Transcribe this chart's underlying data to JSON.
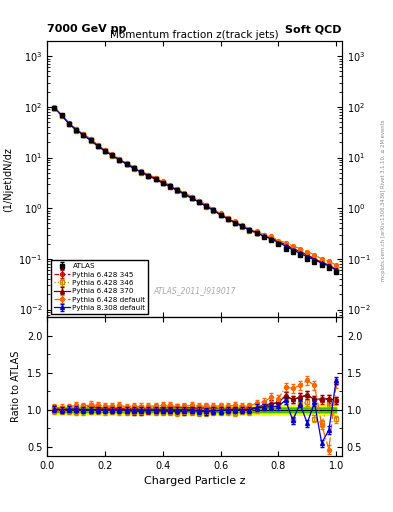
{
  "title_top_left": "7000 GeV pp",
  "title_top_right": "Soft QCD",
  "plot_title": "Momentum fraction z(track jets)",
  "xlabel": "Charged Particle z",
  "ylabel_main": "(1/Njet)dN/dz",
  "ylabel_ratio": "Ratio to ATLAS",
  "watermark": "ATLAS_2011_I919017",
  "right_label_top": "Rivet 3.1.10, ≥ 2M events",
  "right_label_bot": "mcplots.cern.ch [arXiv:1306.3436]",
  "z_values": [
    0.025,
    0.05,
    0.075,
    0.1,
    0.125,
    0.15,
    0.175,
    0.2,
    0.225,
    0.25,
    0.275,
    0.3,
    0.325,
    0.35,
    0.375,
    0.4,
    0.425,
    0.45,
    0.475,
    0.5,
    0.525,
    0.55,
    0.575,
    0.6,
    0.625,
    0.65,
    0.675,
    0.7,
    0.725,
    0.75,
    0.775,
    0.8,
    0.825,
    0.85,
    0.875,
    0.9,
    0.925,
    0.95,
    0.975,
    1.0
  ],
  "atlas_y": [
    95,
    68,
    47,
    35,
    28,
    22,
    17,
    13.5,
    11,
    9.0,
    7.5,
    6.2,
    5.2,
    4.4,
    3.8,
    3.2,
    2.7,
    2.3,
    1.9,
    1.6,
    1.35,
    1.12,
    0.92,
    0.75,
    0.62,
    0.52,
    0.44,
    0.37,
    0.32,
    0.27,
    0.24,
    0.2,
    0.16,
    0.14,
    0.12,
    0.1,
    0.088,
    0.075,
    0.065,
    0.055
  ],
  "atlas_yerr": [
    3,
    2,
    1.5,
    1.1,
    0.9,
    0.7,
    0.55,
    0.44,
    0.35,
    0.29,
    0.24,
    0.2,
    0.17,
    0.14,
    0.12,
    0.1,
    0.086,
    0.073,
    0.062,
    0.052,
    0.044,
    0.036,
    0.03,
    0.024,
    0.02,
    0.017,
    0.014,
    0.012,
    0.01,
    0.0087,
    0.0078,
    0.0065,
    0.0052,
    0.0045,
    0.0039,
    0.0033,
    0.0029,
    0.0024,
    0.0022,
    0.0018
  ],
  "p6_345_y": [
    97,
    69,
    48,
    36,
    29,
    23,
    17.5,
    13.8,
    11.2,
    9.2,
    7.6,
    6.3,
    5.3,
    4.5,
    3.9,
    3.3,
    2.8,
    2.35,
    1.95,
    1.65,
    1.38,
    1.15,
    0.94,
    0.77,
    0.63,
    0.53,
    0.45,
    0.38,
    0.33,
    0.29,
    0.26,
    0.22,
    0.19,
    0.16,
    0.14,
    0.12,
    0.1,
    0.085,
    0.075,
    0.062
  ],
  "p6_346_y": [
    94,
    67,
    46,
    34,
    27.5,
    21.5,
    16.8,
    13.2,
    10.8,
    8.8,
    7.3,
    6.0,
    5.05,
    4.3,
    3.7,
    3.1,
    2.62,
    2.21,
    1.84,
    1.56,
    1.3,
    1.08,
    0.89,
    0.73,
    0.6,
    0.5,
    0.43,
    0.36,
    0.32,
    0.28,
    0.25,
    0.21,
    0.18,
    0.15,
    0.13,
    0.11,
    0.096,
    0.082,
    0.072,
    0.06
  ],
  "p6_370_y": [
    96,
    68,
    47,
    35,
    28,
    22,
    17,
    13.5,
    11,
    9.0,
    7.4,
    6.1,
    5.1,
    4.35,
    3.75,
    3.15,
    2.65,
    2.25,
    1.87,
    1.58,
    1.32,
    1.1,
    0.91,
    0.74,
    0.62,
    0.52,
    0.44,
    0.37,
    0.33,
    0.28,
    0.26,
    0.22,
    0.19,
    0.16,
    0.14,
    0.12,
    0.1,
    0.086,
    0.075,
    0.062
  ],
  "p6_def_y": [
    98,
    70,
    49,
    37,
    29.5,
    23.5,
    18,
    14.2,
    11.5,
    9.5,
    7.8,
    6.5,
    5.4,
    4.6,
    4.0,
    3.4,
    2.85,
    2.4,
    2.0,
    1.7,
    1.42,
    1.18,
    0.97,
    0.79,
    0.65,
    0.55,
    0.46,
    0.39,
    0.35,
    0.3,
    0.28,
    0.23,
    0.21,
    0.18,
    0.16,
    0.14,
    0.12,
    0.1,
    0.09,
    0.075
  ],
  "p8_308_y": [
    96,
    68,
    47.5,
    35.5,
    28,
    22,
    17,
    13.5,
    11,
    9.0,
    7.5,
    6.2,
    5.2,
    4.4,
    3.8,
    3.2,
    2.7,
    2.3,
    1.9,
    1.6,
    1.33,
    1.1,
    0.91,
    0.74,
    0.62,
    0.52,
    0.44,
    0.37,
    0.33,
    0.28,
    0.25,
    0.21,
    0.18,
    0.15,
    0.13,
    0.11,
    0.097,
    0.082,
    0.073,
    0.06
  ],
  "p6_345_ratio": [
    1.02,
    1.01,
    1.02,
    1.03,
    1.04,
    1.05,
    1.03,
    1.02,
    1.02,
    1.02,
    1.01,
    1.02,
    1.02,
    1.02,
    1.03,
    1.03,
    1.04,
    1.04,
    1.03,
    1.03,
    1.02,
    1.03,
    1.02,
    1.03,
    1.02,
    1.02,
    1.02,
    1.03,
    1.03,
    1.07,
    1.08,
    1.1,
    1.19,
    1.14,
    1.17,
    1.2,
    1.14,
    1.13,
    1.15,
    1.13
  ],
  "p6_346_ratio": [
    0.99,
    0.99,
    0.98,
    0.97,
    0.98,
    0.98,
    0.99,
    0.98,
    0.98,
    0.98,
    0.97,
    0.97,
    0.97,
    0.98,
    0.97,
    0.97,
    0.97,
    0.96,
    0.97,
    0.975,
    0.96,
    0.96,
    0.97,
    0.97,
    0.97,
    0.96,
    0.98,
    0.97,
    1.0,
    1.04,
    1.04,
    1.05,
    1.13,
    0.86,
    1.08,
    1.1,
    0.88,
    0.82,
    1.09,
    0.87
  ],
  "p6_370_ratio": [
    1.01,
    1.0,
    1.0,
    1.0,
    1.0,
    1.0,
    1.0,
    1.0,
    1.0,
    1.0,
    0.99,
    0.98,
    0.98,
    0.99,
    0.99,
    0.98,
    0.98,
    0.98,
    0.98,
    0.99,
    0.98,
    0.98,
    0.99,
    0.99,
    1.0,
    1.0,
    1.0,
    1.0,
    1.03,
    1.04,
    1.08,
    1.1,
    1.19,
    1.14,
    1.17,
    1.2,
    1.14,
    1.15,
    1.15,
    1.13
  ],
  "p6_def_ratio": [
    1.03,
    1.03,
    1.04,
    1.06,
    1.05,
    1.07,
    1.06,
    1.05,
    1.05,
    1.06,
    1.04,
    1.05,
    1.04,
    1.05,
    1.05,
    1.06,
    1.06,
    1.04,
    1.05,
    1.06,
    1.05,
    1.05,
    1.05,
    1.05,
    1.05,
    1.06,
    1.05,
    1.05,
    1.09,
    1.11,
    1.17,
    1.15,
    1.31,
    1.29,
    1.33,
    1.4,
    1.33,
    0.8,
    0.46,
    1.36
  ],
  "p8_308_ratio": [
    1.01,
    1.0,
    1.01,
    1.01,
    1.0,
    1.0,
    1.0,
    1.0,
    1.0,
    1.0,
    1.0,
    1.0,
    1.0,
    1.0,
    1.0,
    1.0,
    1.0,
    1.0,
    1.0,
    1.0,
    0.99,
    0.98,
    0.99,
    0.99,
    1.0,
    1.0,
    1.0,
    1.0,
    1.03,
    1.04,
    1.04,
    1.05,
    1.13,
    0.86,
    1.08,
    0.82,
    1.1,
    0.55,
    0.73,
    1.4
  ],
  "atlas_color": "#000000",
  "p6_345_color": "#cc0000",
  "p6_346_color": "#cc8800",
  "p6_370_color": "#800000",
  "p6_def_color": "#ff6600",
  "p8_308_color": "#0000cc",
  "band_yellow": "#ffff00",
  "band_green": "#00bb00",
  "ylim_main": [
    0.007,
    2000
  ],
  "ylim_ratio": [
    0.38,
    2.25
  ],
  "xlim": [
    0.0,
    1.02
  ],
  "legend_labels": [
    "ATLAS",
    "Pythia 6.428 345",
    "Pythia 6.428 346",
    "Pythia 6.428 370",
    "Pythia 6.428 default",
    "Pythia 8.308 default"
  ]
}
